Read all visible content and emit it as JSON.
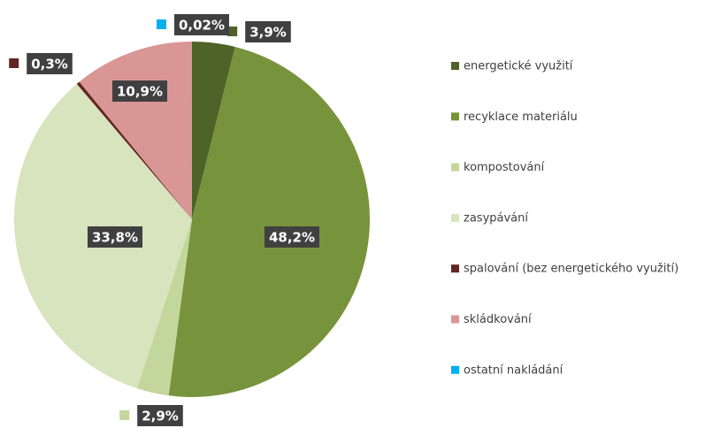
{
  "chart_data": {
    "type": "pie",
    "categories": [
      "energetické využití",
      "recyklace materiálu",
      "kompostování",
      "zasypávání",
      "spalování (bez energetického využití)",
      "skládkování",
      "ostatní nakládání"
    ],
    "values": [
      3.9,
      48.2,
      2.9,
      33.8,
      0.3,
      10.9,
      0.02
    ],
    "value_labels": [
      "3,9%",
      "48,2%",
      "2,9%",
      "33,8%",
      "0,3%",
      "10,9%",
      "0,02%"
    ],
    "colors": [
      "#4f6228",
      "#77933c",
      "#c3d69b",
      "#d7e4bd",
      "#632523",
      "#d99694",
      "#00b0f0"
    ],
    "legend": "right"
  }
}
